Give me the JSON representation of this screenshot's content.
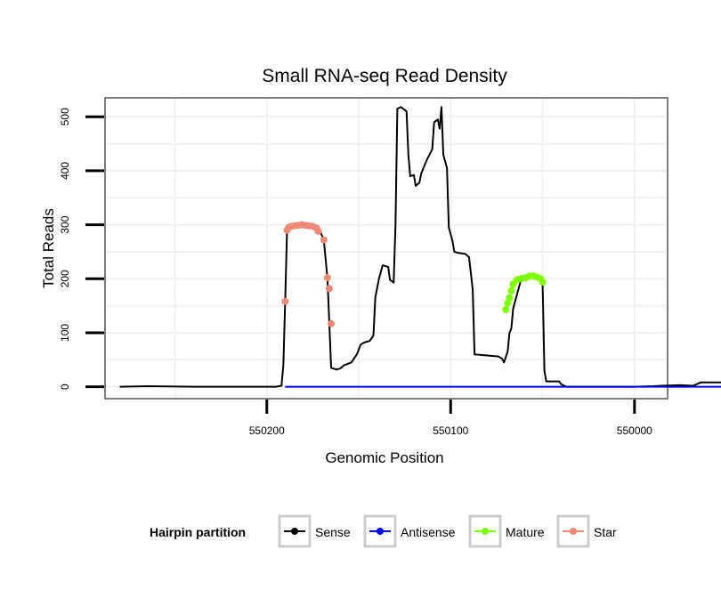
{
  "chart_data": {
    "type": "line",
    "title": "Small RNA-seq Read Density",
    "xlabel": "Genomic Position",
    "ylabel": "Total Reads",
    "x_reversed": true,
    "xlim": [
      549982,
      550288
    ],
    "ylim": [
      -22,
      535
    ],
    "x_ticks": [
      550200,
      550100,
      550000
    ],
    "x_tick_labels": [
      "550200",
      "550100",
      "550000"
    ],
    "y_ticks": [
      0,
      100,
      200,
      300,
      400,
      500
    ],
    "y_tick_labels": [
      "0",
      "100",
      "200",
      "300",
      "400",
      "500"
    ],
    "grid": true,
    "legend_title": "Hairpin partition",
    "legend_position": "bottom",
    "series": [
      {
        "name": "Sense",
        "color": "#000000",
        "points": [
          [
            550280,
            0
          ],
          [
            550265,
            1
          ],
          [
            550238,
            0
          ],
          [
            550195,
            0
          ],
          [
            550192,
            2
          ],
          [
            550191,
            40
          ],
          [
            550190,
            160
          ],
          [
            550189,
            290
          ],
          [
            550188,
            297
          ],
          [
            550180,
            300
          ],
          [
            550172,
            296
          ],
          [
            550169,
            272
          ],
          [
            550167,
            200
          ],
          [
            550166,
            117
          ],
          [
            550165,
            35
          ],
          [
            550162,
            32
          ],
          [
            550160,
            34
          ],
          [
            550158,
            40
          ],
          [
            550154,
            45
          ],
          [
            550151,
            60
          ],
          [
            550149,
            78
          ],
          [
            550147,
            82
          ],
          [
            550144,
            85
          ],
          [
            550142,
            95
          ],
          [
            550141,
            165
          ],
          [
            550139,
            200
          ],
          [
            550137,
            225
          ],
          [
            550134,
            222
          ],
          [
            550133,
            198
          ],
          [
            550131,
            193
          ],
          [
            550130,
            300
          ],
          [
            550129,
            515
          ],
          [
            550127,
            518
          ],
          [
            550124,
            510
          ],
          [
            550123,
            430
          ],
          [
            550122,
            390
          ],
          [
            550120,
            392
          ],
          [
            550119,
            372
          ],
          [
            550117,
            378
          ],
          [
            550116,
            395
          ],
          [
            550113,
            420
          ],
          [
            550110,
            440
          ],
          [
            550109,
            490
          ],
          [
            550107,
            495
          ],
          [
            550106,
            478
          ],
          [
            550105,
            518
          ],
          [
            550104,
            430
          ],
          [
            550102,
            405
          ],
          [
            550101,
            295
          ],
          [
            550099,
            270
          ],
          [
            550098,
            250
          ],
          [
            550096,
            248
          ],
          [
            550092,
            246
          ],
          [
            550090,
            240
          ],
          [
            550088,
            180
          ],
          [
            550087,
            60
          ],
          [
            550080,
            58
          ],
          [
            550074,
            56
          ],
          [
            550072,
            52
          ],
          [
            550071,
            45
          ],
          [
            550069,
            65
          ],
          [
            550068,
            100
          ],
          [
            550067,
            108
          ],
          [
            550066,
            145
          ],
          [
            550064,
            170
          ],
          [
            550062,
            195
          ],
          [
            550055,
            205
          ],
          [
            550052,
            200
          ],
          [
            550050,
            193
          ],
          [
            550049,
            30
          ],
          [
            550048,
            10
          ],
          [
            550041,
            10
          ],
          [
            550040,
            5
          ],
          [
            550037,
            0
          ],
          [
            550000,
            0
          ],
          [
            549990,
            1
          ],
          [
            549985,
            2
          ],
          [
            549975,
            3
          ],
          [
            549968,
            2
          ],
          [
            549964,
            8
          ],
          [
            549952,
            8
          ],
          [
            549951,
            3
          ],
          [
            549948,
            1
          ]
        ]
      },
      {
        "name": "Antisense",
        "color": "#0000ff",
        "points": [
          [
            550190,
            0
          ],
          [
            549948,
            0
          ]
        ]
      },
      {
        "name": "Mature",
        "color": "#7fff00",
        "points": [
          [
            550070,
            143
          ],
          [
            550069,
            155
          ],
          [
            550068,
            165
          ],
          [
            550067,
            178
          ],
          [
            550066,
            190
          ],
          [
            550064,
            198
          ],
          [
            550063,
            199
          ],
          [
            550061,
            201
          ],
          [
            550059,
            202
          ],
          [
            550057,
            205
          ],
          [
            550055,
            205
          ],
          [
            550053,
            203
          ],
          [
            550051,
            200
          ],
          [
            550050,
            194
          ]
        ]
      },
      {
        "name": "Star",
        "color": "#f08878",
        "points": [
          [
            550190,
            158
          ],
          [
            550189,
            290
          ],
          [
            550188,
            295
          ],
          [
            550187,
            297
          ],
          [
            550185,
            298
          ],
          [
            550183,
            299
          ],
          [
            550181,
            300
          ],
          [
            550179,
            299
          ],
          [
            550177,
            298
          ],
          [
            550175,
            297
          ],
          [
            550173,
            294
          ],
          [
            550172,
            288
          ],
          [
            550169,
            272
          ],
          [
            550167,
            202
          ],
          [
            550166,
            182
          ],
          [
            550165,
            117
          ]
        ]
      }
    ]
  }
}
